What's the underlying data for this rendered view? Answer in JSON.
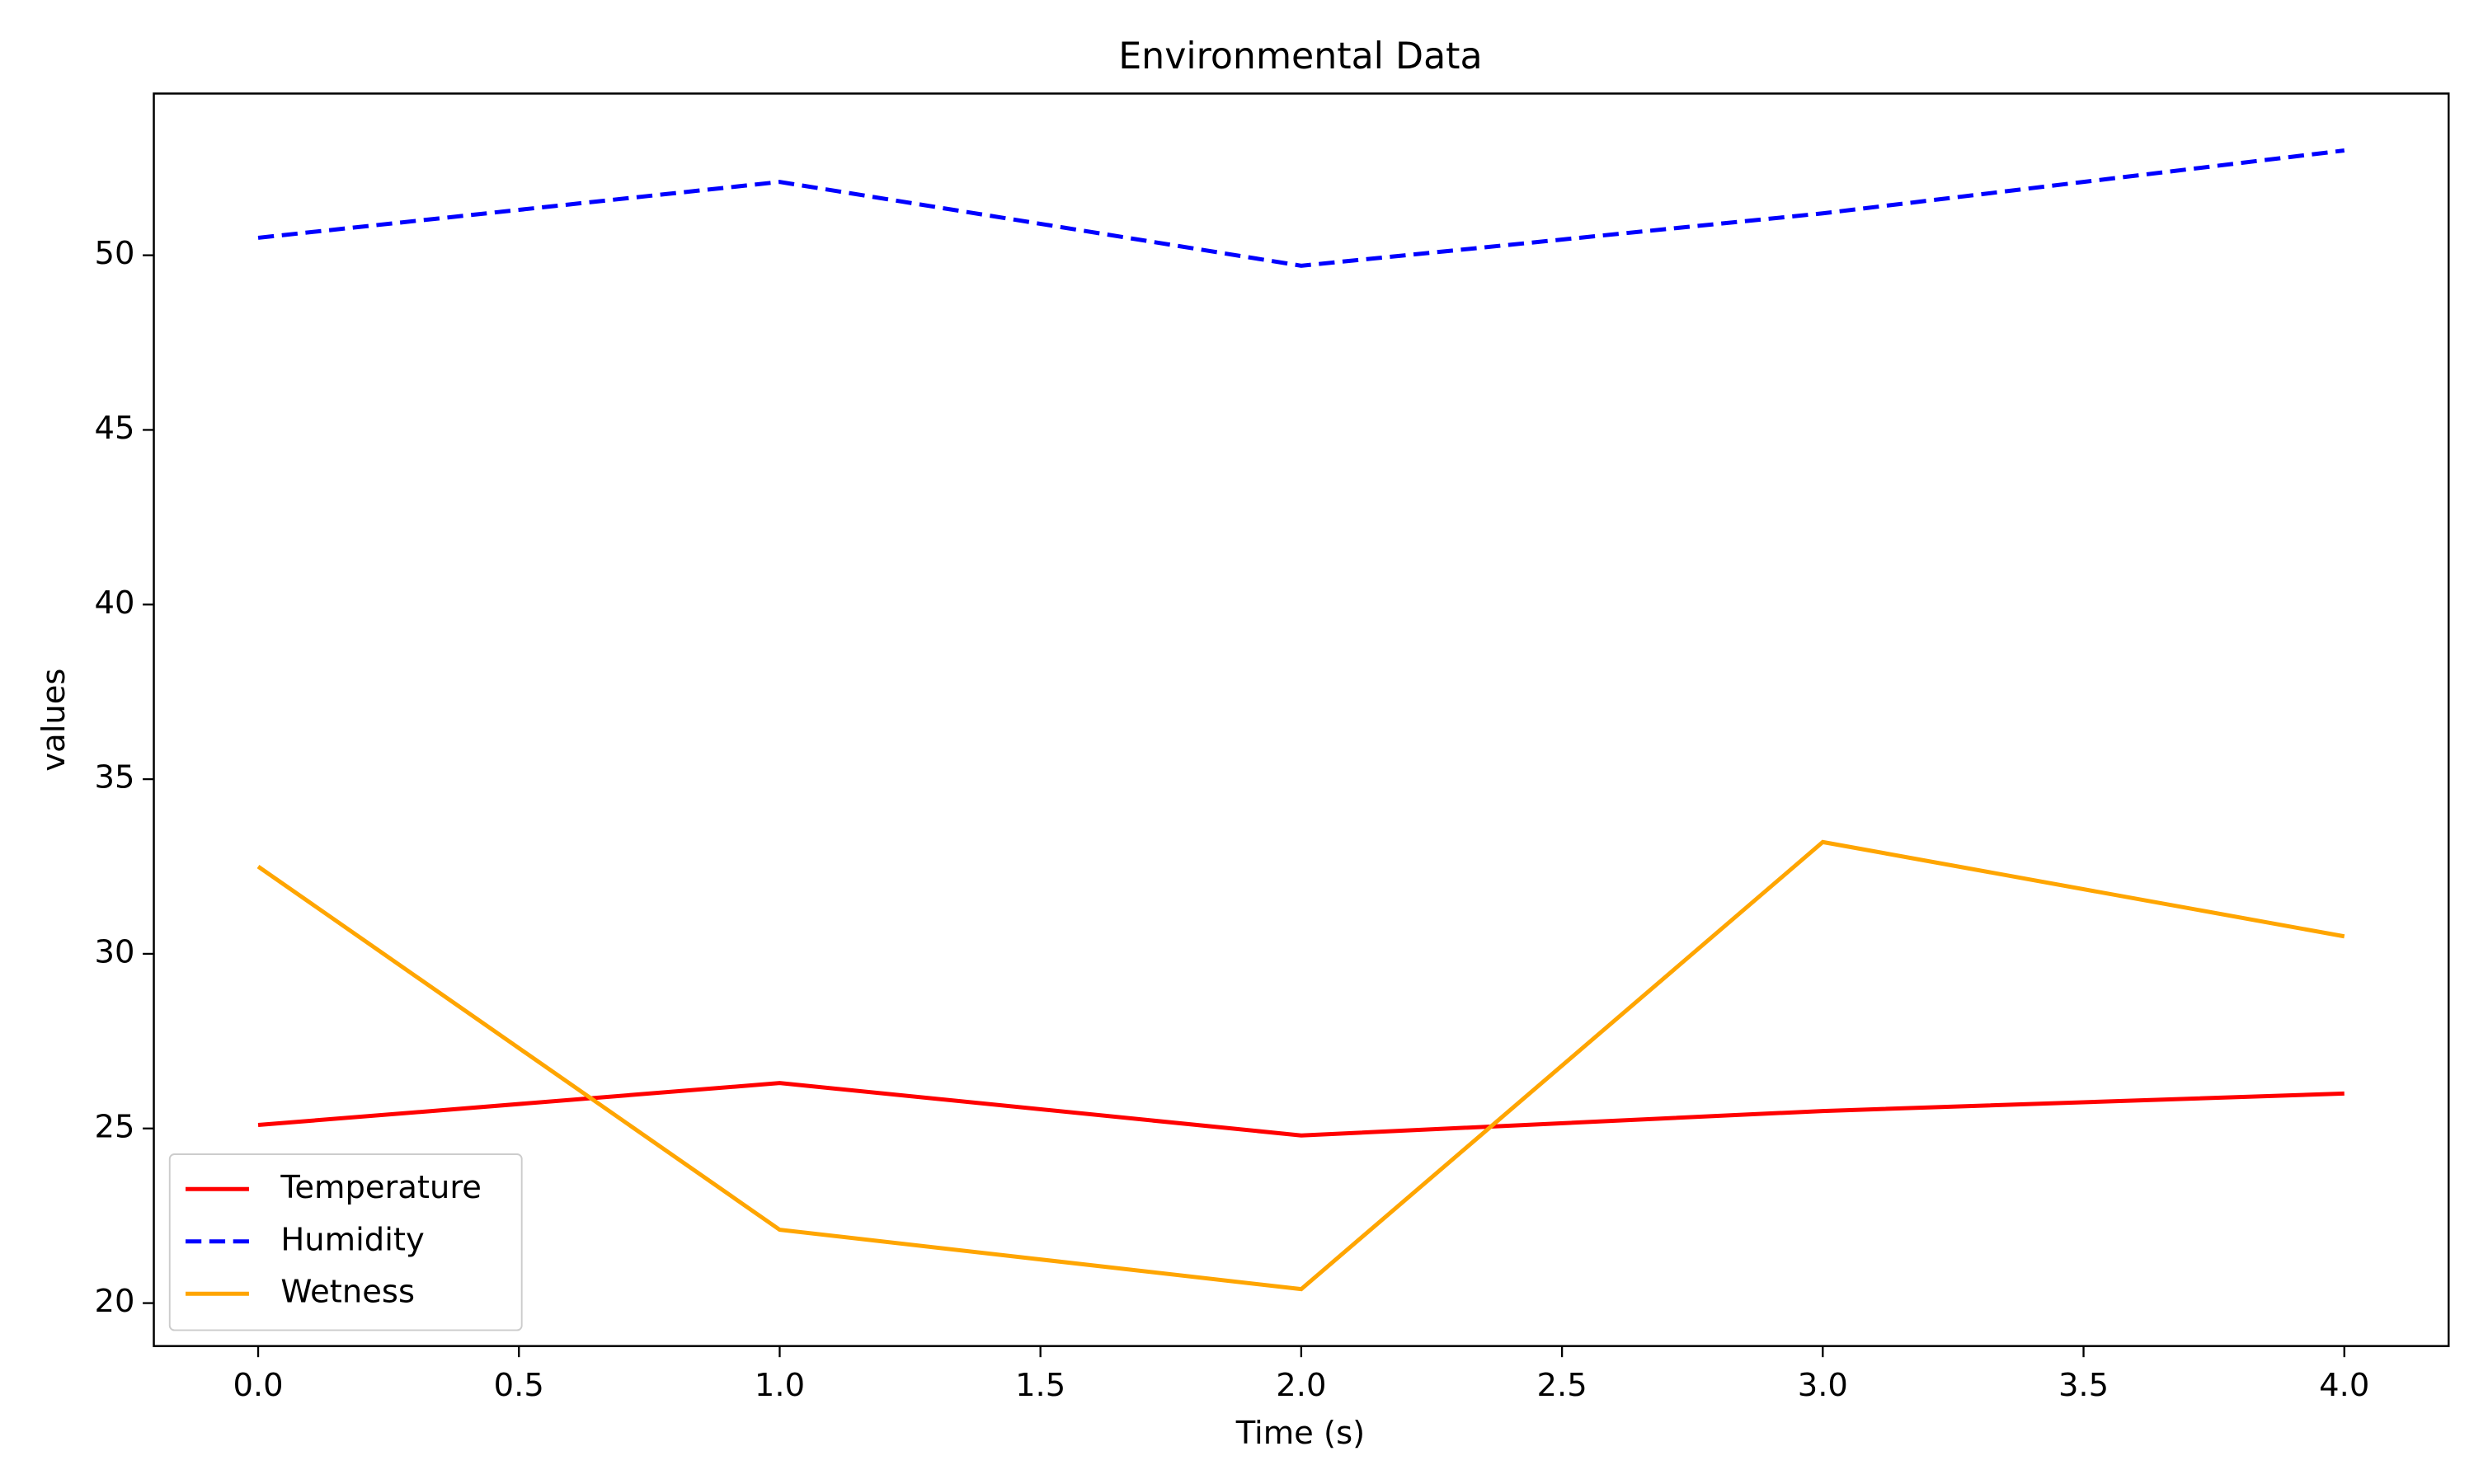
{
  "chart_data": {
    "type": "line",
    "title": "Environmental Data",
    "x_label": "Time (s)",
    "y_label": "values",
    "x": [
      0,
      1,
      2,
      3,
      4
    ],
    "series": [
      {
        "name": "Temperature",
        "color": "#ff0000",
        "dash": "solid",
        "values": [
          25.1,
          26.3,
          24.8,
          25.5,
          26.0
        ]
      },
      {
        "name": "Humidity",
        "color": "#0000ff",
        "dash": "dashed",
        "values": [
          50.5,
          52.1,
          49.7,
          51.2,
          53.0
        ]
      },
      {
        "name": "Wetness",
        "color": "#ffa500",
        "dash": "solid",
        "values": [
          32.5,
          22.1,
          20.4,
          33.2,
          30.5
        ]
      }
    ],
    "xlim": [
      -0.2,
      4.2
    ],
    "ylim": [
      18.77,
      54.63
    ],
    "xticks": [
      {
        "value": 0,
        "label": "0.0"
      },
      {
        "value": 0.5,
        "label": "0.5"
      },
      {
        "value": 1,
        "label": "1.0"
      },
      {
        "value": 1.5,
        "label": "1.5"
      },
      {
        "value": 2,
        "label": "2.0"
      },
      {
        "value": 2.5,
        "label": "2.5"
      },
      {
        "value": 3,
        "label": "3.0"
      },
      {
        "value": 3.5,
        "label": "3.5"
      },
      {
        "value": 4,
        "label": "4.0"
      }
    ],
    "yticks": [
      20,
      25,
      30,
      35,
      40,
      45,
      50
    ],
    "grid": false,
    "legend": "lower left"
  }
}
